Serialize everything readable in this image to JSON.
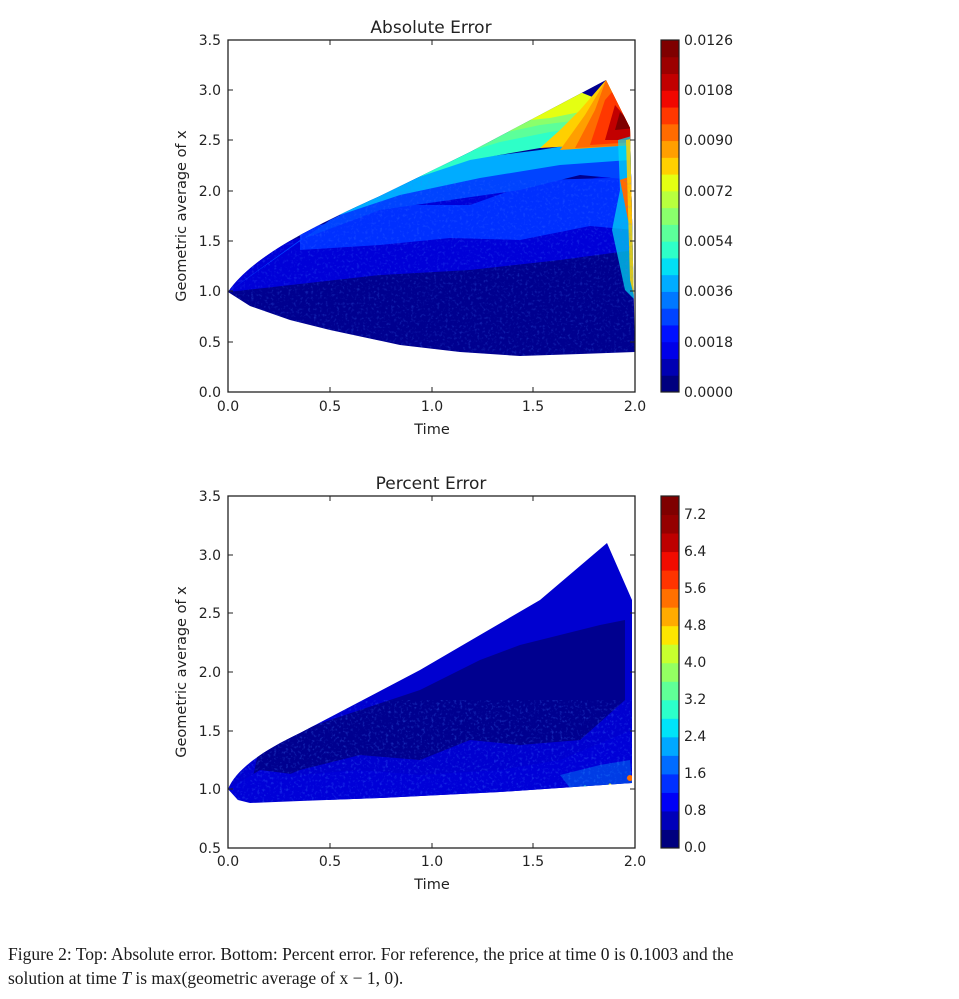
{
  "chart_data": [
    {
      "type": "heatmap",
      "subtype": "filled-contour (tricontourf)",
      "title": "Absolute Error",
      "xlabel": "Time",
      "ylabel": "Geometric average of x",
      "xlim": [
        0.0,
        2.0
      ],
      "ylim": [
        0.0,
        3.5
      ],
      "xticks": [
        "0.0",
        "0.5",
        "1.0",
        "1.5",
        "2.0"
      ],
      "yticks": [
        "0.0",
        "0.5",
        "1.0",
        "1.5",
        "2.0",
        "2.5",
        "3.0",
        "3.5"
      ],
      "grid": false,
      "colormap": "jet",
      "colorbar": {
        "min": 0.0,
        "max": 0.0126,
        "levels": 21,
        "ticks": [
          "0.0000",
          "0.0018",
          "0.0036",
          "0.0054",
          "0.0072",
          "0.0090",
          "0.0108",
          "0.0126"
        ]
      },
      "domain_outline": [
        [
          0.0,
          1.0
        ],
        [
          0.5,
          1.7
        ],
        [
          1.0,
          2.25
        ],
        [
          1.5,
          2.75
        ],
        [
          1.86,
          3.1
        ],
        [
          1.98,
          2.63
        ],
        [
          2.0,
          0.4
        ],
        [
          1.5,
          0.36
        ],
        [
          1.0,
          0.45
        ],
        [
          0.5,
          0.62
        ],
        [
          0.25,
          0.75
        ],
        [
          0.0,
          1.0
        ]
      ],
      "regions": [
        {
          "area": "bulk of domain (y < 1.5)",
          "approx_value": 0.0003
        },
        {
          "area": "mid band (y 1.5-2.2)",
          "approx_value": 0.0015
        },
        {
          "area": "upper edge t 0.5-1.0",
          "approx_value": 0.004
        },
        {
          "area": "upper edge t 1.0-1.4",
          "approx_value": 0.007
        },
        {
          "area": "upper corner t 1.6-1.86, y 2.4-3.1",
          "approx_value": 0.0105
        },
        {
          "area": "top-right tip near t=2, y 2.6",
          "approx_value": 0.0126
        }
      ],
      "max_value": 0.0126
    },
    {
      "type": "heatmap",
      "subtype": "filled-contour (tricontourf)",
      "title": "Percent Error",
      "xlabel": "Time",
      "ylabel": "Geometric average of x",
      "xlim": [
        0.0,
        2.0
      ],
      "ylim": [
        0.5,
        3.5
      ],
      "xticks": [
        "0.0",
        "0.5",
        "1.0",
        "1.5",
        "2.0"
      ],
      "yticks": [
        "0.5",
        "1.0",
        "1.5",
        "2.0",
        "2.5",
        "3.0",
        "3.5"
      ],
      "grid": false,
      "colormap": "jet",
      "colorbar": {
        "min": 0.0,
        "max": 7.6,
        "levels": 19,
        "ticks": [
          "0.0",
          "0.8",
          "1.6",
          "2.4",
          "3.2",
          "4.0",
          "4.8",
          "5.6",
          "6.4",
          "7.2"
        ]
      },
      "domain_outline": [
        [
          0.0,
          1.0
        ],
        [
          0.5,
          1.75
        ],
        [
          1.0,
          2.3
        ],
        [
          1.5,
          2.75
        ],
        [
          1.86,
          3.1
        ],
        [
          1.98,
          2.63
        ],
        [
          1.98,
          1.05
        ],
        [
          1.0,
          0.98
        ],
        [
          0.5,
          0.93
        ],
        [
          0.1,
          0.9
        ],
        [
          0.0,
          1.0
        ]
      ],
      "regions": [
        {
          "area": "upper wedge",
          "approx_value": 0.6
        },
        {
          "area": "central band",
          "approx_value": 0.2
        },
        {
          "area": "lower edge noisy region",
          "approx_value": 1.2
        },
        {
          "area": "bottom-right near t=2, y~1.05",
          "approx_value": 6.0
        }
      ]
    }
  ],
  "figure": {
    "plots": [
      {
        "title": "Absolute Error",
        "xlabel": "Time",
        "ylabel": "Geometric average of x",
        "xticks": [
          "0.0",
          "0.5",
          "1.0",
          "1.5",
          "2.0"
        ],
        "yticks": [
          "0.0",
          "0.5",
          "1.0",
          "1.5",
          "2.0",
          "2.5",
          "3.0",
          "3.5"
        ],
        "cbar_ticks": [
          "0.0000",
          "0.0018",
          "0.0036",
          "0.0054",
          "0.0072",
          "0.0090",
          "0.0108",
          "0.0126"
        ]
      },
      {
        "title": "Percent Error",
        "xlabel": "Time",
        "ylabel": "Geometric average of x",
        "xticks": [
          "0.0",
          "0.5",
          "1.0",
          "1.5",
          "2.0"
        ],
        "yticks": [
          "0.5",
          "1.0",
          "1.5",
          "2.0",
          "2.5",
          "3.0",
          "3.5"
        ],
        "cbar_ticks": [
          "0.0",
          "0.8",
          "1.6",
          "2.4",
          "3.2",
          "4.0",
          "4.8",
          "5.6",
          "6.4",
          "7.2"
        ]
      }
    ],
    "caption": {
      "line1": "Figure 2: Top: Absolute error. Bottom: Percent error. For reference, the price at time 0 is 0.1003 and the",
      "line2_pre": "solution at time ",
      "line2_var": "T",
      "line2_post": " is max(geometric average of x − 1, 0)."
    }
  },
  "colors": {
    "jet_21": [
      "#00007f",
      "#0000b2",
      "#0000e8",
      "#0010ff",
      "#0044ff",
      "#0078ff",
      "#00acff",
      "#02e0f4",
      "#2effc8",
      "#5cff9a",
      "#8aff6c",
      "#b8ff3e",
      "#e4ff12",
      "#ffd000",
      "#ff9f00",
      "#ff6b00",
      "#ff3800",
      "#f10700",
      "#c20000",
      "#9c0000",
      "#7f0000"
    ],
    "jet_19": [
      "#00007f",
      "#0000b9",
      "#0000f6",
      "#0030ff",
      "#006cff",
      "#00a8ff",
      "#00e4f8",
      "#2cffca",
      "#60ff97",
      "#94ff62",
      "#c8ff2e",
      "#fde600",
      "#ffab00",
      "#ff7000",
      "#ff3400",
      "#f20b00",
      "#bd0000",
      "#950000",
      "#7f0000"
    ],
    "axis": "#222222"
  }
}
